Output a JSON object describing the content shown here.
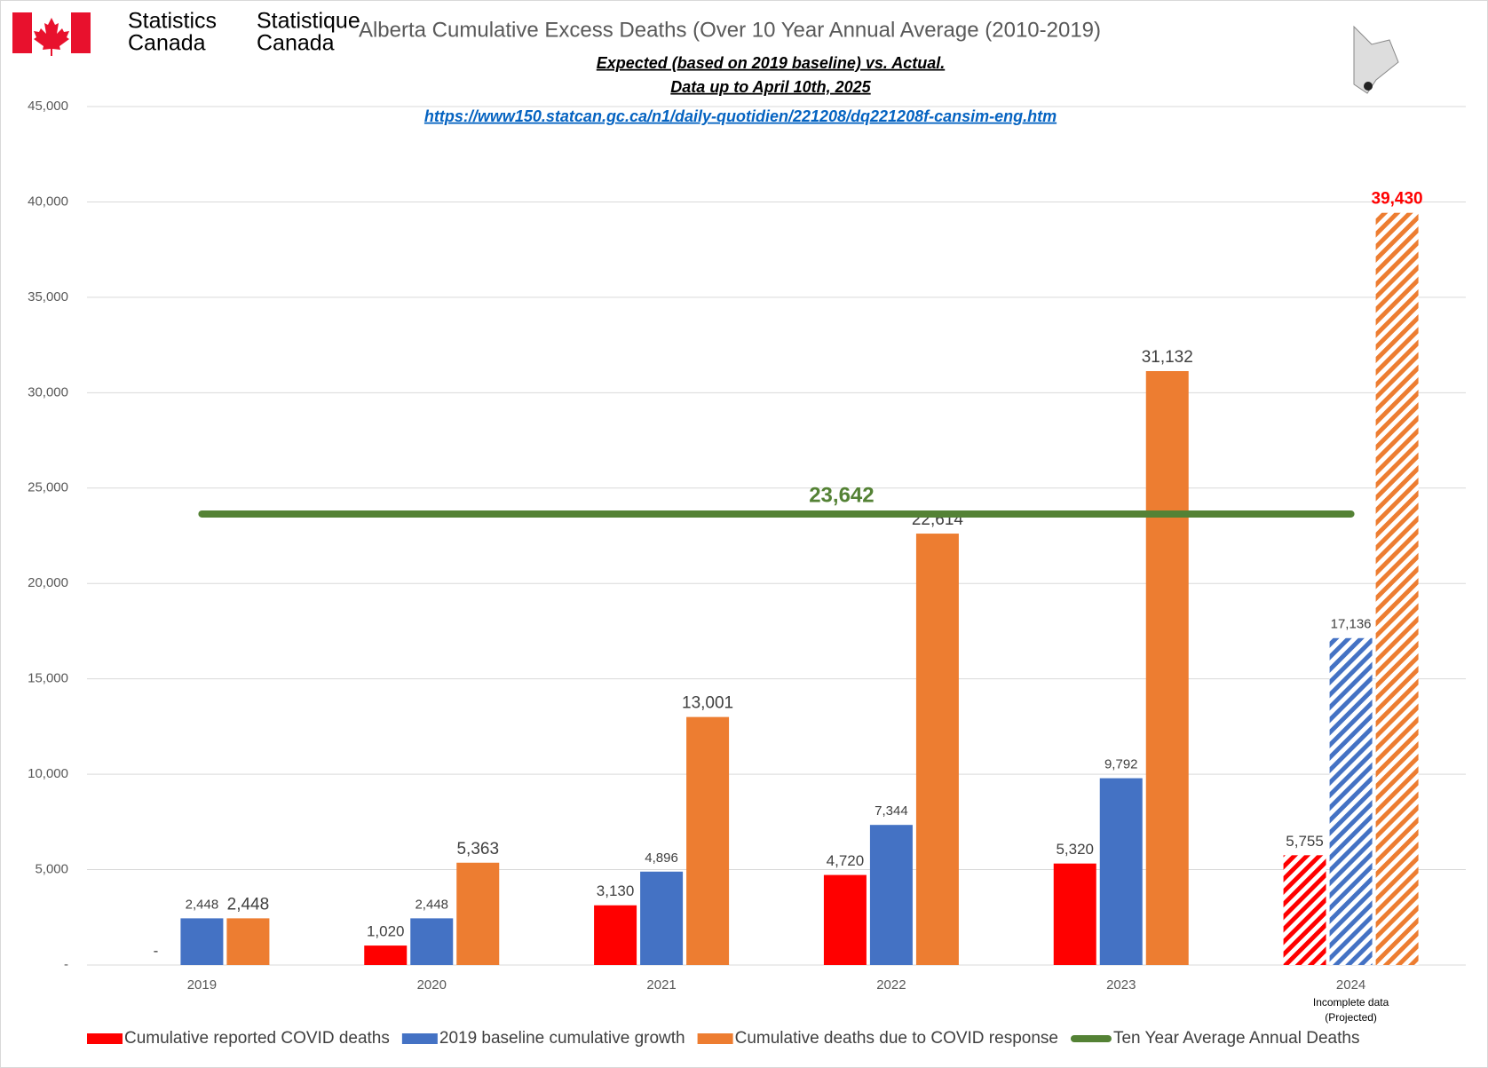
{
  "header": {
    "en": [
      "Statistics",
      "Canada"
    ],
    "fr": [
      "Statistique",
      "Canada"
    ]
  },
  "chart_data": {
    "type": "bar",
    "title": "Alberta Cumulative Excess Deaths (Over 10 Year Annual Average (2010-2019)",
    "subtitle": [
      "Expected (based on 2019 baseline) vs. Actual.",
      "Data up to April 10th, 2025"
    ],
    "source": "https://www150.statcan.gc.ca/n1/daily-quotidien/221208/dq221208f-cansim-eng.htm",
    "categories": [
      "2019",
      "2020",
      "2021",
      "2022",
      "2023",
      "2024"
    ],
    "x_annotation": [
      "Incomplete data",
      "(Projected)"
    ],
    "hatched": [
      false,
      false,
      false,
      false,
      false,
      true
    ],
    "series": [
      {
        "name": "Cumulative reported COVID deaths",
        "color": "#ff0000",
        "values": [
          0,
          1020,
          3130,
          4720,
          5320,
          5755
        ],
        "value_labels": [
          "-",
          "1,020",
          "3,130",
          "4,720",
          "5,320",
          "5,755"
        ]
      },
      {
        "name": "2019 baseline cumulative growth",
        "color": "#4472c4",
        "values": [
          2448,
          2448,
          4896,
          7344,
          9792,
          17136
        ],
        "value_labels": [
          "2,448",
          "2,448",
          "4,896",
          "7,344",
          "9,792",
          "17,136"
        ]
      },
      {
        "name": "Cumulative deaths due to COVID response",
        "color": "#ed7d31",
        "values": [
          2448,
          5363,
          13001,
          22614,
          31132,
          39430
        ],
        "value_labels": [
          "2,448",
          "5,363",
          "13,001",
          "22,614",
          "31,132",
          "39,430"
        ]
      },
      {
        "name": "Ten Year Average Annual Deaths",
        "color": "#548235",
        "type": "line",
        "values": [
          23642,
          23642,
          23642,
          23642,
          23642,
          23642
        ],
        "value_labels": [
          null,
          null,
          null,
          "23,642",
          null,
          null
        ]
      }
    ],
    "ylim": [
      0,
      45000
    ],
    "yticks": [
      {
        "value": 0,
        "label": "-"
      },
      {
        "value": 5000,
        "label": "5,000"
      },
      {
        "value": 10000,
        "label": "10,000"
      },
      {
        "value": 15000,
        "label": "15,000"
      },
      {
        "value": 20000,
        "label": "20,000"
      },
      {
        "value": 25000,
        "label": "25,000"
      },
      {
        "value": 30000,
        "label": "30,000"
      },
      {
        "value": 35000,
        "label": "35,000"
      },
      {
        "value": 40000,
        "label": "40,000"
      },
      {
        "value": 45000,
        "label": "45,000"
      }
    ],
    "grid": true,
    "legend": "bottom"
  }
}
